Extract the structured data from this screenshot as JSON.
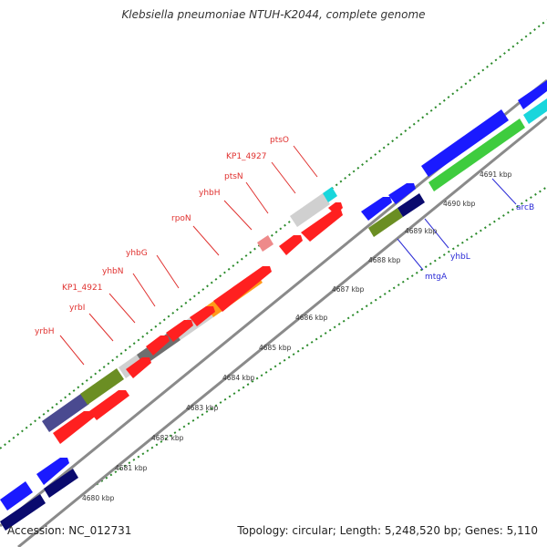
{
  "title": "Klebsiella pneumoniae NTUH-K2044, complete genome",
  "footer": {
    "accession_label": "Accession:",
    "accession": "NC_012731",
    "summary": "Topology: circular; Length: 5,248,520 bp; Genes: 5,110"
  },
  "colors": {
    "background": "#ffffff",
    "label_red": "#e0312f",
    "label_blue": "#2b2bd6",
    "tick_green": "#2a8a2a",
    "backbone": "#8a8a8a",
    "gene_red": "#ff2020",
    "gene_blue": "#1a1aff",
    "gene_navy": "#0a0a6e",
    "gene_green": "#3ecc3e",
    "gene_cyan": "#19d6dc",
    "gene_olive": "#6b8e23",
    "gene_orange": "#ff9a1a",
    "gene_pink": "#ee8a8a",
    "gene_lightgray": "#d0d0d0",
    "gene_darkgray": "#6e6e6e",
    "gene_slate": "#4a4a90"
  },
  "ticks": [
    "4680 kbp",
    "4681 kbp",
    "4682 kbp",
    "4683 kbp",
    "4684 kbp",
    "4685 kbp",
    "4686 kbp",
    "4687 kbp",
    "4688 kbp",
    "4689 kbp",
    "4690 kbp",
    "4691 kbp"
  ],
  "gene_labels": {
    "red": [
      "yrbH",
      "yrbI",
      "KP1_4921",
      "yhbN",
      "yhbG",
      "rpoN",
      "yhbH",
      "ptsN",
      "KP1_4927",
      "ptsO"
    ],
    "blue": [
      "mtgA",
      "yhbL",
      "arcB"
    ]
  }
}
